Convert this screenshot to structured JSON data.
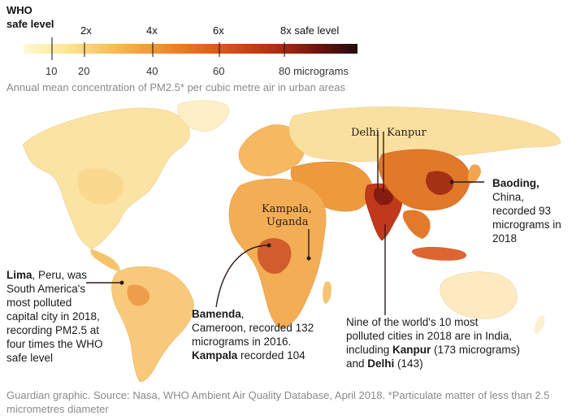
{
  "legend": {
    "who_line1": "WHO",
    "who_line2": "safe level",
    "multiples": [
      "2x",
      "4x",
      "6x",
      "8x safe level"
    ],
    "ticks": [
      "10",
      "20",
      "40",
      "60",
      "80 micrograms"
    ],
    "gradient_colors": [
      "#fff7d0",
      "#fde79a",
      "#f8b94e",
      "#ec8326",
      "#d8541b",
      "#b42f12",
      "#6e1410",
      "#220c0c"
    ]
  },
  "subtitle": "Annual mean concentration of PM2.5* per cubic metre air in urban areas",
  "map_labels": {
    "delhi": "Delhi",
    "kanpur": "Kanpur",
    "kampala_line1": "Kampala,",
    "kampala_line2": "Uganda"
  },
  "annotations": {
    "baoding": {
      "bold": "Baoding,",
      "lines": [
        "China,",
        "recorded 93",
        "micrograms in",
        "2018"
      ]
    },
    "lima": {
      "bold": "Lima",
      "first_rest": ", Peru, was",
      "lines": [
        "South America's",
        "most polluted",
        "capital city in 2018,",
        "recording PM2.5 at",
        "four times the WHO",
        "safe level"
      ]
    },
    "bamenda": {
      "bold": "Bamenda",
      "first_rest": ",",
      "lines": [
        "Cameroon, recorded 132",
        "micrograms in 2016."
      ],
      "kampala_bold": "Kampala",
      "kampala_rest": " recorded 104"
    },
    "india": {
      "lines": [
        "Nine of the world's 10 most",
        "polluted cities in 2018 are in India,"
      ],
      "l3_pre": "including ",
      "l3_bold": "Kanpur",
      "l3_post": " (173 micrograms)",
      "l4_pre": "and ",
      "l4_bold": "Delhi",
      "l4_post": " (143)"
    }
  },
  "footer": {
    "line1": "Guardian graphic. Source: Nasa, WHO Ambient Air Quality Database, April 2018. *Particulate matter of less than 2.5",
    "line2": "micrometres diameter"
  }
}
